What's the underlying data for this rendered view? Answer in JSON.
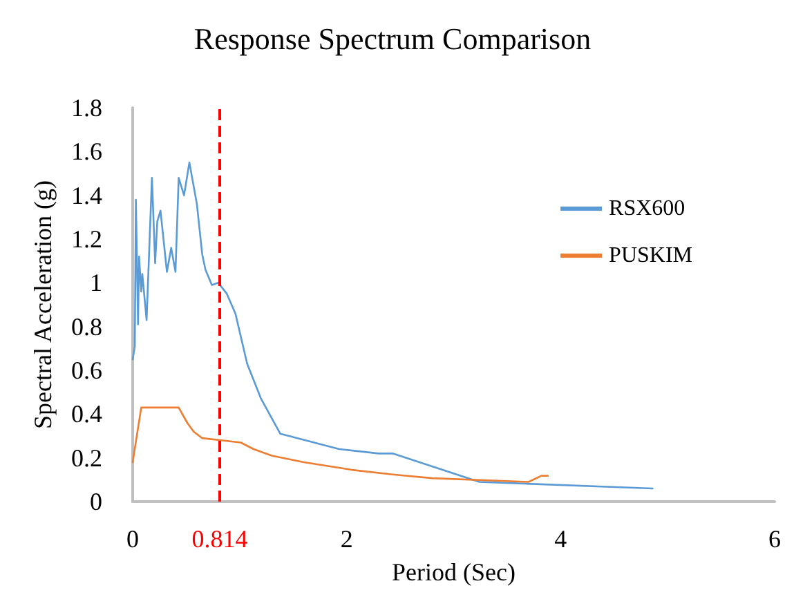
{
  "chart_data": {
    "type": "line",
    "title": "Response Spectrum Comparison",
    "xlabel": "Period (Sec)",
    "ylabel": "Spectral Acceleration (g)",
    "xlim": [
      0,
      6
    ],
    "xticks": [
      0,
      2,
      4,
      6
    ],
    "ylim": [
      0,
      1.8
    ],
    "yticks": [
      0,
      0.2,
      0.4,
      0.6,
      0.8,
      1,
      1.2,
      1.4,
      1.6,
      1.8
    ],
    "grid": false,
    "legend": "right",
    "marker": "none",
    "line_style": "solid",
    "ref_lines": [
      {
        "axis": "x",
        "value": 0.814,
        "label": "0.814",
        "color": "#ff0000",
        "line_style": "dashed"
      }
    ],
    "series": [
      {
        "name": "RSX600",
        "color": "#5b9bd5",
        "x": [
          0,
          0.02,
          0.03,
          0.05,
          0.06,
          0.08,
          0.09,
          0.13,
          0.18,
          0.21,
          0.23,
          0.26,
          0.32,
          0.36,
          0.4,
          0.43,
          0.48,
          0.53,
          0.6,
          0.65,
          0.68,
          0.74,
          0.8,
          0.88,
          0.96,
          1.07,
          1.2,
          1.38,
          1.93,
          2.3,
          2.43,
          3.24,
          4.86
        ],
        "values": [
          0.65,
          0.71,
          1.38,
          0.81,
          1.12,
          0.96,
          1.04,
          0.83,
          1.48,
          1.09,
          1.28,
          1.33,
          1.05,
          1.16,
          1.05,
          1.48,
          1.4,
          1.55,
          1.36,
          1.13,
          1.06,
          0.99,
          1.0,
          0.95,
          0.86,
          0.63,
          0.47,
          0.31,
          0.24,
          0.22,
          0.22,
          0.09,
          0.06
        ]
      },
      {
        "name": "PUSKIM",
        "color": "#ed7d31",
        "x": [
          0,
          0.08,
          0.43,
          0.51,
          0.57,
          0.65,
          1.01,
          1.13,
          1.3,
          1.6,
          2.05,
          2.43,
          2.8,
          3.7,
          3.82,
          3.88
        ],
        "values": [
          0.18,
          0.43,
          0.43,
          0.36,
          0.32,
          0.29,
          0.27,
          0.24,
          0.21,
          0.18,
          0.145,
          0.124,
          0.107,
          0.09,
          0.118,
          0.118
        ]
      }
    ]
  }
}
